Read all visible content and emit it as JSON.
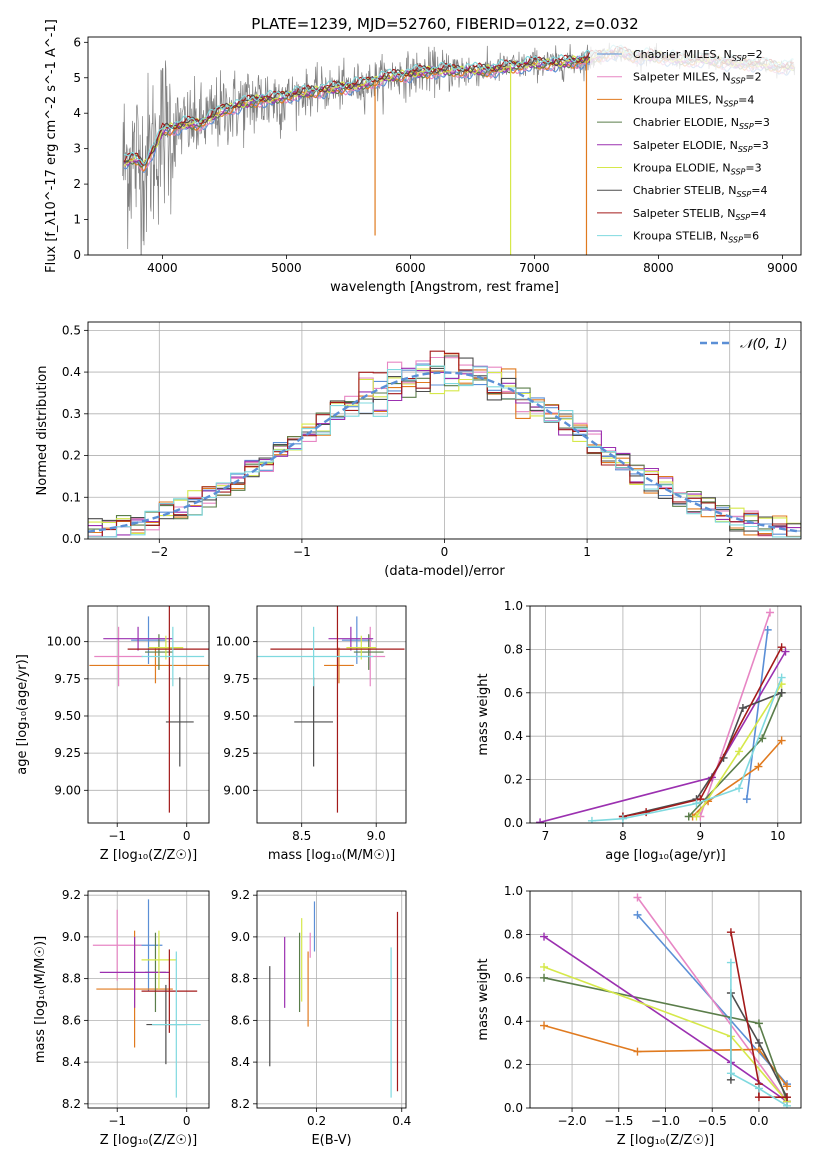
{
  "figure": {
    "title": "PLATE=1239, MJD=52760, FIBERID=0122, z=0.032"
  },
  "colors": {
    "series": [
      "#5b8fd6",
      "#e786c4",
      "#e07a1f",
      "#5a7d4a",
      "#9b30b0",
      "#d6e84a",
      "#4d4d4d",
      "#a31a1a",
      "#7fd9df"
    ],
    "gaussian": "#5b8fd6",
    "spectrum_data": "#7f7f7f",
    "grid": "#b0b0b0"
  },
  "series_names": [
    "Chabrier MILES, N$_{SSP}$=2",
    "Salpeter MILES, N$_{SSP}$=2",
    "Kroupa MILES, N$_{SSP}$=4",
    "Chabrier ELODIE, N$_{SSP}$=3",
    "Salpeter ELODIE, N$_{SSP}$=3",
    "Kroupa ELODIE, N$_{SSP}$=3",
    "Chabrier STELIB, N$_{SSP}$=4",
    "Salpeter STELIB, N$_{SSP}$=4",
    "Kroupa STELIB, N$_{SSP}$=6"
  ],
  "chart_data": [
    {
      "id": "spectrum",
      "type": "line",
      "xlabel": "wavelength [Angstrom, rest frame]",
      "ylabel": "Flux [f_λ10^-17 erg cm^-2 s^-1 A^-1]",
      "xlim": [
        3400,
        9150
      ],
      "ylim": [
        0,
        6.15
      ],
      "xticks": [
        4000,
        5000,
        6000,
        7000,
        8000,
        9000
      ],
      "yticks": [
        0,
        1,
        2,
        3,
        4,
        5,
        6
      ],
      "legend": "top-right",
      "model_continuum": {
        "x": [
          3700,
          3750,
          3800,
          3850,
          3900,
          3950,
          4000,
          4100,
          4200,
          4300,
          4400,
          4500,
          4600,
          4700,
          4800,
          4900,
          5000,
          5200,
          5400,
          5600,
          5800,
          6000,
          6200,
          6400,
          6600,
          6800,
          7000,
          7200,
          7400,
          7500,
          7600,
          7700,
          7800,
          8000,
          8200,
          8400,
          8600,
          8800,
          9000,
          9100
        ],
        "y": [
          2.6,
          2.7,
          2.7,
          2.5,
          2.8,
          3.1,
          3.5,
          3.6,
          3.7,
          3.7,
          3.9,
          4.1,
          4.2,
          4.3,
          4.4,
          4.4,
          4.5,
          4.6,
          4.7,
          4.8,
          5.0,
          5.1,
          5.2,
          5.2,
          5.2,
          5.3,
          5.4,
          5.4,
          5.5,
          5.6,
          5.7,
          5.7,
          5.6,
          5.6,
          5.5,
          5.5,
          5.4,
          5.4,
          5.3,
          5.3
        ]
      }
    },
    {
      "id": "residuals",
      "type": "histogram",
      "xlabel": "(data-model)/error",
      "ylabel": "Normed distribution",
      "xlim": [
        -2.5,
        2.5
      ],
      "ylim": [
        0,
        0.52
      ],
      "xticks": [
        -2,
        -1,
        0,
        1,
        2
      ],
      "yticks": [
        0.0,
        0.1,
        0.2,
        0.3,
        0.4,
        0.5
      ],
      "bin_width": 0.1,
      "reference_label": "𝒩(0, 1)",
      "legend": "top-right"
    },
    {
      "id": "age_vs_Z",
      "type": "errorbar",
      "xlabel": "Z [log₁₀(Z/Z☉)]",
      "ylabel": "age  [log₁₀(age/yr)]",
      "xlim": [
        -1.42,
        0.32
      ],
      "ylim": [
        8.78,
        10.24
      ],
      "xticks": [
        -1,
        0
      ],
      "yticks": [
        9.0,
        9.25,
        9.5,
        9.75,
        10.0
      ],
      "points": [
        {
          "x": -0.55,
          "xerr": 0.25,
          "y": 10.01,
          "yerr": 0.16
        },
        {
          "x": -0.98,
          "xerr": 0.35,
          "y": 9.9,
          "yerr": 0.2
        },
        {
          "x": -0.45,
          "xerr": 0.95,
          "y": 9.84,
          "yerr": 0.12
        },
        {
          "x": -0.4,
          "xerr": 0.2,
          "y": 9.93,
          "yerr": 0.12
        },
        {
          "x": -0.7,
          "xerr": 0.5,
          "y": 10.02,
          "yerr": 0.08
        },
        {
          "x": -0.3,
          "xerr": 0.25,
          "y": 9.96,
          "yerr": 0.08
        },
        {
          "x": -0.1,
          "xerr": 0.2,
          "y": 9.46,
          "yerr": 0.3
        },
        {
          "x": -0.25,
          "xerr": 0.6,
          "y": 9.95,
          "yerr": 1.1
        },
        {
          "x": -0.2,
          "xerr": 0.45,
          "y": 9.9,
          "yerr": 0.2
        }
      ]
    },
    {
      "id": "age_vs_mass",
      "type": "errorbar",
      "xlabel": "mass [log₁₀(M/M☉)]",
      "ylabel": "",
      "xlim": [
        8.2,
        9.2
      ],
      "ylim": [
        8.78,
        10.24
      ],
      "xticks": [
        8.5,
        9.0
      ],
      "yticks": [
        9.0,
        9.25,
        9.5,
        9.75,
        10.0
      ],
      "points": [
        {
          "x": 8.87,
          "xerr": 0.1,
          "y": 10.01,
          "yerr": 0.16
        },
        {
          "x": 8.96,
          "xerr": 0.1,
          "y": 9.9,
          "yerr": 0.2
        },
        {
          "x": 8.75,
          "xerr": 0.1,
          "y": 9.84,
          "yerr": 0.12
        },
        {
          "x": 8.95,
          "xerr": 0.1,
          "y": 9.93,
          "yerr": 0.12
        },
        {
          "x": 8.83,
          "xerr": 0.15,
          "y": 10.02,
          "yerr": 0.08
        },
        {
          "x": 8.9,
          "xerr": 0.1,
          "y": 9.96,
          "yerr": 0.08
        },
        {
          "x": 8.58,
          "xerr": 0.13,
          "y": 9.46,
          "yerr": 0.3
        },
        {
          "x": 8.74,
          "xerr": 0.45,
          "y": 9.95,
          "yerr": 1.1
        },
        {
          "x": 8.58,
          "xerr": 0.4,
          "y": 9.9,
          "yerr": 0.2
        }
      ]
    },
    {
      "id": "mass_weight_vs_age",
      "type": "line",
      "xlabel": "age  [log₁₀(age/yr)]",
      "ylabel": "mass weight",
      "xlim": [
        6.8,
        10.3
      ],
      "ylim": [
        0,
        1.0
      ],
      "xticks": [
        7,
        8,
        9,
        10
      ],
      "yticks": [
        0.0,
        0.2,
        0.4,
        0.6,
        0.8,
        1.0
      ],
      "series": [
        {
          "x": [
            9.6,
            9.87
          ],
          "y": [
            0.11,
            0.89
          ]
        },
        {
          "x": [
            9.0,
            9.9
          ],
          "y": [
            0.03,
            0.97
          ]
        },
        {
          "x": [
            8.9,
            9.1,
            9.75,
            10.05
          ],
          "y": [
            0.03,
            0.1,
            0.26,
            0.38
          ]
        },
        {
          "x": [
            8.85,
            9.8,
            10.05
          ],
          "y": [
            0.03,
            0.39,
            0.6
          ]
        },
        {
          "x": [
            6.93,
            9.15,
            10.1
          ],
          "y": [
            0.003,
            0.21,
            0.79
          ]
        },
        {
          "x": [
            8.95,
            9.5,
            10.05
          ],
          "y": [
            0.03,
            0.33,
            0.64
          ]
        },
        {
          "x": [
            8.0,
            8.95,
            9.3,
            9.55,
            10.05
          ],
          "y": [
            0.03,
            0.11,
            0.3,
            0.53,
            0.6
          ]
        },
        {
          "x": [
            8.0,
            8.3,
            9.0,
            10.05
          ],
          "y": [
            0.03,
            0.05,
            0.11,
            0.81
          ]
        },
        {
          "x": [
            7.6,
            8.0,
            8.95,
            9.5,
            10.05
          ],
          "y": [
            0.01,
            0.02,
            0.09,
            0.16,
            0.67
          ]
        }
      ]
    },
    {
      "id": "mass_vs_Z",
      "type": "errorbar",
      "xlabel": "Z [log₁₀(Z/Z☉)]",
      "ylabel": "mass [log₁₀(M/M☉)]",
      "xlim": [
        -1.42,
        0.32
      ],
      "ylim": [
        8.18,
        9.22
      ],
      "xticks": [
        -1,
        0
      ],
      "yticks": [
        8.2,
        8.4,
        8.6,
        8.8,
        9.0,
        9.2
      ],
      "points": [
        {
          "x": -0.55,
          "xerr": 0.2,
          "y": 8.96,
          "yerr": 0.22
        },
        {
          "x": -1.0,
          "xerr": 0.35,
          "y": 8.96,
          "yerr": 0.17
        },
        {
          "x": -0.75,
          "xerr": 0.55,
          "y": 8.75,
          "yerr": 0.28
        },
        {
          "x": -0.45,
          "xerr": 0.15,
          "y": 8.83,
          "yerr": 0.19
        },
        {
          "x": -0.75,
          "xerr": 0.5,
          "y": 8.83,
          "yerr": 0.17
        },
        {
          "x": -0.4,
          "xerr": 0.25,
          "y": 8.89,
          "yerr": 0.14
        },
        {
          "x": -0.3,
          "xerr": 0.28,
          "y": 8.58,
          "yerr": 0.19
        },
        {
          "x": -0.25,
          "xerr": 0.4,
          "y": 8.74,
          "yerr": 0.2
        },
        {
          "x": -0.15,
          "xerr": 0.35,
          "y": 8.58,
          "yerr": 0.35
        }
      ]
    },
    {
      "id": "mass_vs_EBV",
      "type": "errorbar",
      "xlabel": "E(B-V)",
      "ylabel": "",
      "xlim": [
        0.06,
        0.41
      ],
      "ylim": [
        8.18,
        9.22
      ],
      "xticks": [
        0.2,
        0.4
      ],
      "yticks": [
        8.2,
        8.4,
        8.6,
        8.8,
        9.0,
        9.2
      ],
      "points": [
        {
          "x": 0.195,
          "y": 9.05,
          "yerr": 0.12
        },
        {
          "x": 0.185,
          "y": 8.96,
          "yerr": 0.06
        },
        {
          "x": 0.18,
          "y": 8.75,
          "yerr": 0.18
        },
        {
          "x": 0.16,
          "y": 8.83,
          "yerr": 0.19
        },
        {
          "x": 0.125,
          "y": 8.83,
          "yerr": 0.17
        },
        {
          "x": 0.165,
          "y": 8.89,
          "yerr": 0.2
        },
        {
          "x": 0.09,
          "y": 8.62,
          "yerr": 0.24
        },
        {
          "x": 0.39,
          "y": 8.69,
          "yerr": 0.43
        },
        {
          "x": 0.375,
          "y": 8.59,
          "yerr": 0.36
        }
      ]
    },
    {
      "id": "mass_weight_vs_Z",
      "type": "line",
      "xlabel": "Z [log₁₀(Z/Z☉)]",
      "ylabel": "mass weight",
      "xlim": [
        -2.45,
        0.45
      ],
      "ylim": [
        0,
        1.0
      ],
      "xticks": [
        -2.0,
        -1.5,
        -1.0,
        -0.5,
        0.0
      ],
      "yticks": [
        0.0,
        0.2,
        0.4,
        0.6,
        0.8,
        1.0
      ],
      "series": [
        {
          "x": [
            -1.3,
            0.3
          ],
          "y": [
            0.89,
            0.11
          ]
        },
        {
          "x": [
            -1.3,
            0.3
          ],
          "y": [
            0.97,
            0.03
          ]
        },
        {
          "x": [
            -2.3,
            -1.3,
            0.0,
            0.3
          ],
          "y": [
            0.38,
            0.26,
            0.27,
            0.1
          ]
        },
        {
          "x": [
            -2.3,
            0.0,
            0.3
          ],
          "y": [
            0.6,
            0.39,
            0.03
          ]
        },
        {
          "x": [
            -2.3,
            -0.3,
            0.3
          ],
          "y": [
            0.79,
            0.21,
            0.03
          ]
        },
        {
          "x": [
            -2.3,
            -0.3,
            0.3
          ],
          "y": [
            0.65,
            0.33,
            0.03
          ]
        },
        {
          "x": [
            -0.3,
            -0.3,
            0.0,
            0.3
          ],
          "y": [
            0.13,
            0.53,
            0.3,
            0.05
          ]
        },
        {
          "x": [
            -0.3,
            0.0,
            0.0,
            0.3
          ],
          "y": [
            0.81,
            0.11,
            0.05,
            0.05
          ]
        },
        {
          "x": [
            -0.3,
            -0.3,
            0.0,
            0.3
          ],
          "y": [
            0.67,
            0.16,
            0.09,
            0.01
          ]
        }
      ]
    }
  ]
}
